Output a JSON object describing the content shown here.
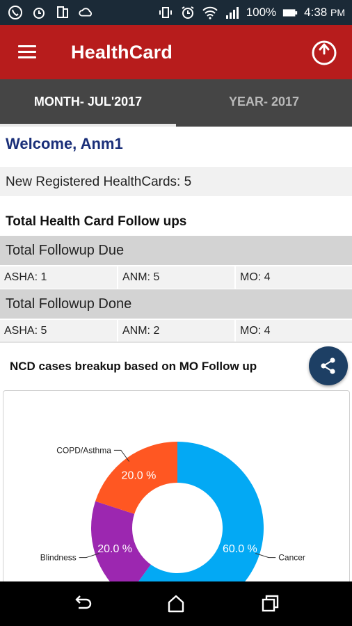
{
  "status_bar": {
    "battery": "100%",
    "time": "4:38",
    "ampm": "PM",
    "icons": [
      "whatsapp-icon",
      "alarm-icon",
      "dual-sim-icon",
      "cloud-icon",
      "vibrate-icon",
      "alarm-clock-icon",
      "wifi-icon",
      "signal-icon",
      "battery-icon"
    ]
  },
  "app_bar": {
    "title": "HealthCard",
    "menu_icon": "hamburger-menu-icon",
    "power_icon": "power-icon",
    "color": "#b71c1c"
  },
  "tabs": [
    {
      "label": "MONTH- JUL'2017",
      "active": true
    },
    {
      "label": "YEAR- 2017",
      "active": false
    }
  ],
  "welcome": {
    "text": "Welcome,  Anm1",
    "color": "#1a2f79"
  },
  "new_registered": "New Registered HealthCards: 5",
  "followups": {
    "title": "Total Health Card Follow ups",
    "due": {
      "heading": "Total Followup Due",
      "asha": "ASHA: 1",
      "anm": "ANM: 5",
      "mo": "MO: 4"
    },
    "done": {
      "heading": "Total Followup Done",
      "asha": "ASHA: 5",
      "anm": "ANM: 2",
      "mo": "MO: 4"
    }
  },
  "ncd": {
    "title": "NCD cases breakup based on MO Follow up",
    "share_icon": "share-icon",
    "share_color": "#1d3f64"
  },
  "chart_data": {
    "type": "pie",
    "donut": true,
    "slices": [
      {
        "label": "Cancer",
        "value": 60.0,
        "display": "60.0 %",
        "color": "#03a9f4"
      },
      {
        "label": "Blindness",
        "value": 20.0,
        "display": "20.0 %",
        "color": "#9c27b0"
      },
      {
        "label": "COPD/Asthma",
        "value": 20.0,
        "display": "20.0 %",
        "color": "#ff5722"
      }
    ]
  },
  "nav_bar": {
    "icons": [
      "back-icon",
      "home-icon",
      "recents-icon"
    ]
  }
}
